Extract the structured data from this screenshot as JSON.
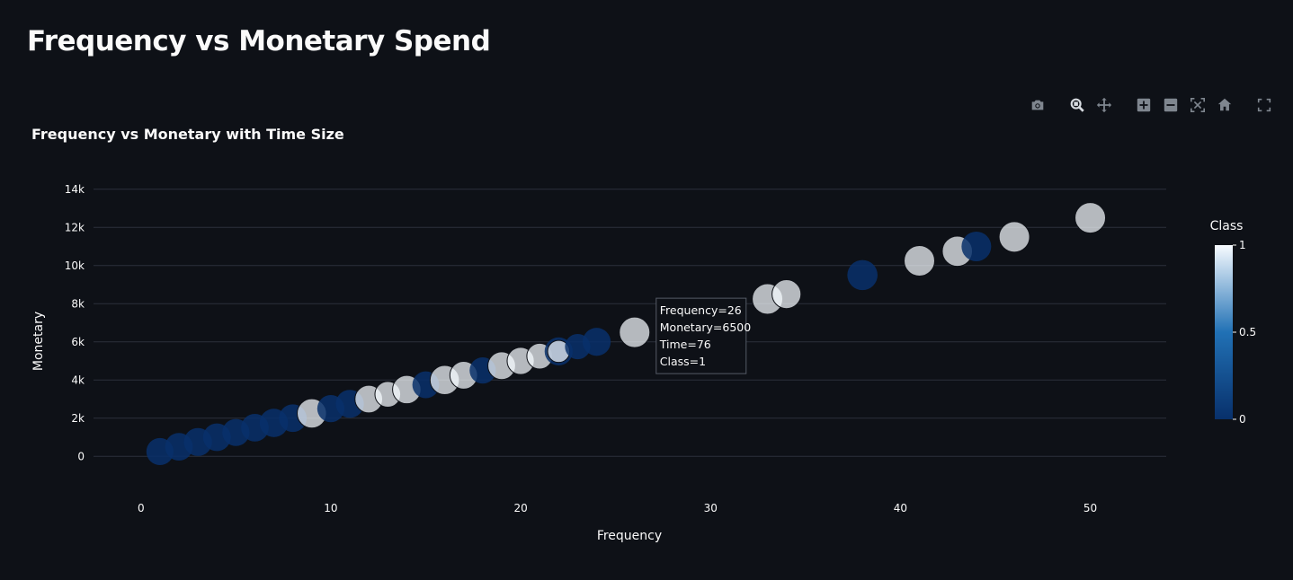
{
  "page": {
    "title": "Frequency vs Monetary Spend"
  },
  "colors": {
    "background": "#0e1117",
    "grid": "#2b303b",
    "cmin": "#08306b",
    "cmid": "#2171b5",
    "cmax": "#f7fbff"
  },
  "modebar": {
    "icons": [
      "camera-icon",
      "zoom-icon",
      "pan-icon",
      "zoom-in-icon",
      "zoom-out-icon",
      "autoscale-icon",
      "reset-axes-icon",
      "fullscreen-icon"
    ]
  },
  "chart_data": {
    "type": "scatter",
    "title": "Frequency vs Monetary with Time Size",
    "xlabel": "Frequency",
    "ylabel": "Monetary",
    "xlim": [
      -2.5,
      54
    ],
    "ylim": [
      -1400,
      14600
    ],
    "x_ticks": [
      0,
      10,
      20,
      30,
      40,
      50
    ],
    "y_ticks": [
      0,
      2000,
      4000,
      6000,
      8000,
      10000,
      12000,
      14000
    ],
    "y_tick_labels": [
      "0",
      "2k",
      "4k",
      "6k",
      "8k",
      "10k",
      "12k",
      "14k"
    ],
    "grid": true,
    "size_field": "Time",
    "color_field": "Class",
    "colorbar": {
      "title": "Class",
      "ticks": [
        0,
        0.5,
        1
      ],
      "tick_labels": [
        "0",
        "0.5",
        "1"
      ]
    },
    "points": [
      {
        "x": 1,
        "y": 250,
        "time": 60,
        "class": 0
      },
      {
        "x": 2,
        "y": 500,
        "time": 62,
        "class": 0
      },
      {
        "x": 3,
        "y": 750,
        "time": 64,
        "class": 0
      },
      {
        "x": 4,
        "y": 1000,
        "time": 62,
        "class": 0
      },
      {
        "x": 5,
        "y": 1250,
        "time": 60,
        "class": 0
      },
      {
        "x": 6,
        "y": 1500,
        "time": 62,
        "class": 0
      },
      {
        "x": 7,
        "y": 1750,
        "time": 66,
        "class": 0
      },
      {
        "x": 8,
        "y": 2000,
        "time": 62,
        "class": 0
      },
      {
        "x": 9,
        "y": 2250,
        "time": 70,
        "class": 1
      },
      {
        "x": 10,
        "y": 2500,
        "time": 60,
        "class": 0
      },
      {
        "x": 11,
        "y": 2750,
        "time": 64,
        "class": 0
      },
      {
        "x": 12,
        "y": 3000,
        "time": 62,
        "class": 1
      },
      {
        "x": 13,
        "y": 3250,
        "time": 54,
        "class": 1
      },
      {
        "x": 14,
        "y": 3500,
        "time": 66,
        "class": 1
      },
      {
        "x": 15,
        "y": 3750,
        "time": 58,
        "class": 0
      },
      {
        "x": 16,
        "y": 4000,
        "time": 70,
        "class": 1
      },
      {
        "x": 17,
        "y": 4250,
        "time": 62,
        "class": 1
      },
      {
        "x": 18,
        "y": 4500,
        "time": 56,
        "class": 0
      },
      {
        "x": 19,
        "y": 4750,
        "time": 62,
        "class": 1
      },
      {
        "x": 20,
        "y": 5000,
        "time": 60,
        "class": 1
      },
      {
        "x": 21,
        "y": 5250,
        "time": 54,
        "class": 1
      },
      {
        "x": 22,
        "y": 5500,
        "time": 64,
        "class": 0
      },
      {
        "x": 22,
        "y": 5500,
        "time": 40,
        "class": 1
      },
      {
        "x": 23,
        "y": 5750,
        "time": 52,
        "class": 0
      },
      {
        "x": 24,
        "y": 6000,
        "time": 64,
        "class": 0
      },
      {
        "x": 26,
        "y": 6500,
        "time": 76,
        "class": 1
      },
      {
        "x": 33,
        "y": 8250,
        "time": 76,
        "class": 1
      },
      {
        "x": 34,
        "y": 8500,
        "time": 68,
        "class": 1
      },
      {
        "x": 38,
        "y": 9500,
        "time": 74,
        "class": 0
      },
      {
        "x": 41,
        "y": 10250,
        "time": 76,
        "class": 1
      },
      {
        "x": 43,
        "y": 10750,
        "time": 74,
        "class": 1
      },
      {
        "x": 44,
        "y": 11000,
        "time": 72,
        "class": 0
      },
      {
        "x": 46,
        "y": 11500,
        "time": 76,
        "class": 1
      },
      {
        "x": 50,
        "y": 12500,
        "time": 76,
        "class": 1
      }
    ],
    "hover": {
      "point_index": 25,
      "lines": [
        "Frequency=26",
        "Monetary=6500",
        "Time=76",
        "Class=1"
      ]
    }
  }
}
